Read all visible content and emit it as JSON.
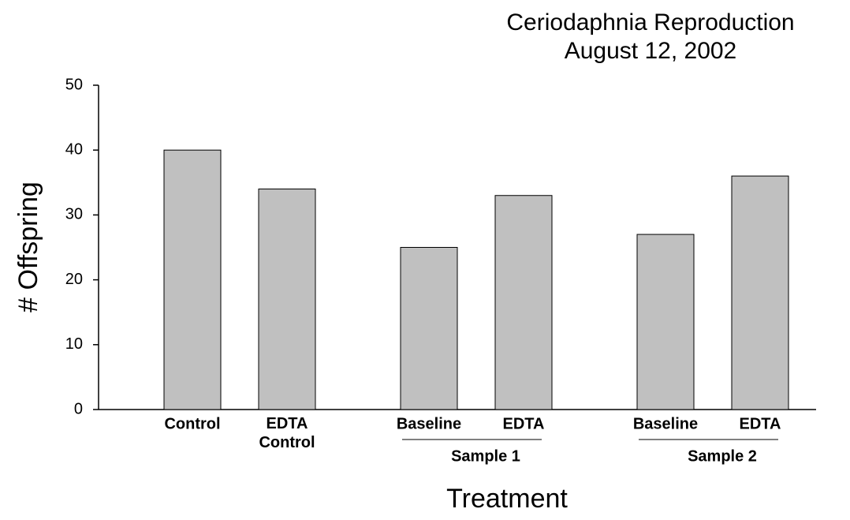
{
  "chart_data": {
    "type": "bar",
    "title": "Ceriodaphnia Reproduction",
    "subtitle": "August 12, 2002",
    "x_label": "Treatment",
    "y_label": "# Offspring",
    "categories": [
      "Control",
      "EDTA Control",
      "Baseline",
      "EDTA",
      "Baseline",
      "EDTA"
    ],
    "category_groups": [
      null,
      null,
      "Sample 1",
      "Sample 1",
      "Sample 2",
      "Sample 2"
    ],
    "values": [
      40,
      34,
      25,
      33,
      27,
      36
    ],
    "color": "#c0c0c0",
    "ylim": [
      0,
      50
    ],
    "yticks": [
      0,
      10,
      20,
      30,
      40,
      50
    ],
    "grid": false
  }
}
